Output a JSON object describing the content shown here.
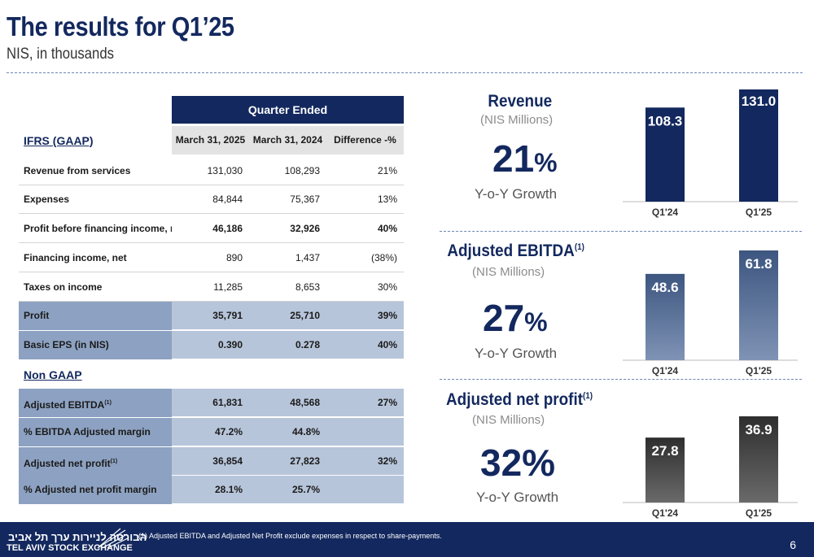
{
  "header": {
    "title": "The results for Q1’25",
    "subtitle": "NIS, in thousands"
  },
  "table": {
    "band": "Quarter Ended",
    "section1": "IFRS (GAAP)",
    "columns": [
      "March 31, 2025",
      "March 31, 2024",
      "Difference -%"
    ],
    "gaap_rows": [
      {
        "label": "Revenue from services",
        "v1": "131,030",
        "v2": "108,293",
        "v3": "21%"
      },
      {
        "label": "Expenses",
        "v1": "84,844",
        "v2": "75,367",
        "v3": "13%"
      },
      {
        "label": "Profit before financing income, net",
        "v1": "46,186",
        "v2": "32,926",
        "v3": "40%"
      },
      {
        "label": "Financing income, net",
        "v1": "890",
        "v2": "1,437",
        "v3": "(38%)"
      },
      {
        "label": "Taxes on income",
        "v1": "11,285",
        "v2": "8,653",
        "v3": "30%"
      },
      {
        "label": "Profit",
        "v1": "35,791",
        "v2": "25,710",
        "v3": "39%"
      },
      {
        "label": "Basic EPS (in NIS)",
        "v1": "0.390",
        "v2": "0.278",
        "v3": "40%"
      }
    ],
    "section2": "Non GAAP",
    "nongaap_rows": [
      {
        "label": "Adjusted EBITDA",
        "sup": "(1)",
        "v1": "61,831",
        "v2": "48,568",
        "v3": "27%"
      },
      {
        "label": " % EBITDA Adjusted margin",
        "sup": "",
        "v1": "47.2%",
        "v2": "44.8%",
        "v3": ""
      },
      {
        "label": "Adjusted net profit",
        "sup": "(1)",
        "v1": "36,854",
        "v2": "27,823",
        "v3": "32%"
      },
      {
        "label": "% Adjusted net profit margin",
        "sup": "",
        "v1": "28.1%",
        "v2": "25.7%",
        "v3": ""
      }
    ]
  },
  "kpis": [
    {
      "title": "Revenue",
      "sup": "",
      "unit": "(NIS Millions)",
      "big": "21",
      "pct": "%",
      "yoy": "Y-o-Y Growth"
    },
    {
      "title": "Adjusted EBITDA",
      "sup": "(1)",
      "unit": "(NIS Millions)",
      "big": "27",
      "pct": "%",
      "yoy": "Y-o-Y Growth"
    },
    {
      "title": "Adjusted net profit",
      "sup": "(1)",
      "unit": "(NIS Millions)",
      "big": "32%",
      "pct": "",
      "yoy": "Y-o-Y Growth"
    }
  ],
  "colors": {
    "navy": "#13285e",
    "revenue_bar": "#13285e",
    "ebitda_bar_top": "#3d5680",
    "ebitda_bar_bottom": "#7f93b5",
    "profit_bar_top": "#2e2e2e",
    "profit_bar_bottom": "#6a6a6a"
  },
  "chart_data": [
    {
      "type": "bar",
      "title": "",
      "categories": [
        "Q1'24",
        "Q1'25"
      ],
      "values": [
        108.3,
        131.0
      ],
      "labels": [
        "108.3",
        "131.0"
      ],
      "ylim": [
        0,
        131.0
      ]
    },
    {
      "type": "bar",
      "title": "",
      "categories": [
        "Q1'24",
        "Q1'25"
      ],
      "values": [
        48.6,
        61.8
      ],
      "labels": [
        "48.6",
        "61.8"
      ],
      "ylim": [
        0,
        61.8
      ]
    },
    {
      "type": "bar",
      "title": "",
      "categories": [
        "Q1'24",
        "Q1'25"
      ],
      "values": [
        27.8,
        36.9
      ],
      "labels": [
        "27.8",
        "36.9"
      ],
      "ylim": [
        0,
        36.9
      ]
    }
  ],
  "footer": {
    "logo_hebrew": "הבורסה לניירות ערך תל אביב",
    "logo_english": "TEL AVIV STOCK EXCHANGE",
    "footnote": "(1)    Adjusted EBITDA and Adjusted Net Profit exclude expenses in respect to share-payments.",
    "page": "6"
  }
}
